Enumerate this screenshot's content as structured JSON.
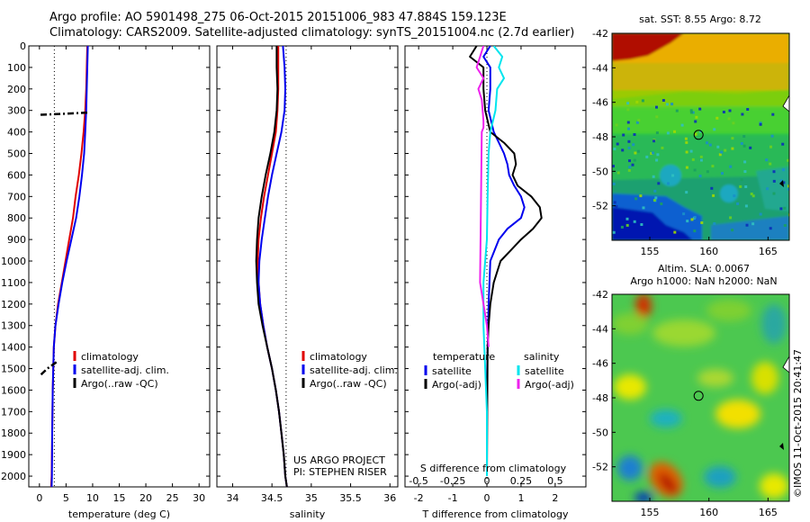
{
  "header": {
    "line1": "Argo profile: AO 5901498_275 06-Oct-2015 20151006_983 47.884S 159.123E",
    "line2": "Climatology: CARS2009. Satellite-adjusted climatology: synTS_20151004.nc (2.7d earlier)"
  },
  "colors": {
    "climatology": "#e00000",
    "satellite": "#0000ee",
    "argo": "#000000",
    "cyan": "#00e5ee",
    "magenta": "#ee22ee"
  },
  "depth_axis": {
    "ylim": [
      0,
      2050
    ],
    "ticks": [
      "0",
      "100",
      "200",
      "300",
      "400",
      "500",
      "600",
      "700",
      "800",
      "900",
      "1000",
      "1100",
      "1200",
      "1300",
      "1400",
      "1500",
      "1600",
      "1700",
      "1800",
      "1900",
      "2000"
    ]
  },
  "chart_data": [
    {
      "id": "temperature",
      "type": "line",
      "xlabel": "temperature (deg C)",
      "xlim": [
        -2,
        32
      ],
      "xticks": [
        "0",
        "5",
        "10",
        "15",
        "20",
        "25",
        "30"
      ],
      "xtick_values": [
        0,
        5,
        10,
        15,
        20,
        25,
        30
      ],
      "ref_x": 2.8,
      "legend": [
        "climatology",
        "satellite-adj. clim.",
        "Argo(..raw -QC)"
      ],
      "series": [
        {
          "name": "climatology",
          "color": "#e00000",
          "depth": [
            0,
            100,
            200,
            300,
            400,
            500,
            600,
            700,
            800,
            900,
            1000,
            1100,
            1200,
            1300,
            1400,
            1600,
            1800,
            2000,
            2050
          ],
          "values": [
            9.0,
            8.9,
            8.8,
            8.6,
            8.3,
            7.9,
            7.4,
            6.8,
            6.3,
            5.6,
            4.9,
            4.2,
            3.5,
            3.0,
            2.7,
            2.5,
            2.4,
            2.3,
            2.2
          ]
        },
        {
          "name": "satellite-adj. clim.",
          "color": "#0000ee",
          "depth": [
            0,
            100,
            200,
            300,
            400,
            500,
            600,
            700,
            800,
            900,
            1000,
            1100,
            1200,
            1300,
            1400,
            1600,
            1800,
            2000,
            2050
          ],
          "values": [
            9.1,
            9.0,
            8.9,
            8.8,
            8.6,
            8.4,
            8.0,
            7.5,
            6.9,
            6.0,
            5.1,
            4.3,
            3.6,
            3.0,
            2.7,
            2.5,
            2.4,
            2.35,
            2.3
          ]
        },
        {
          "name": "Argo(..raw -QC)",
          "color": "#000000",
          "dashed": true,
          "depth": [
            310,
            315,
            320
          ],
          "values": [
            9.0,
            5.0,
            0.2
          ]
        },
        {
          "name": "Argo(..raw -QC)",
          "color": "#000000",
          "dashed": true,
          "depth": [
            1470,
            1500,
            1530
          ],
          "values": [
            3.2,
            1.5,
            0.2
          ]
        }
      ]
    },
    {
      "id": "salinity",
      "type": "line",
      "xlabel": "salinity",
      "xlim": [
        33.8,
        36.1
      ],
      "xticks": [
        "34",
        "34.5",
        "35",
        "35.5",
        "36"
      ],
      "xtick_values": [
        34,
        34.5,
        35,
        35.5,
        36
      ],
      "ref_x": 34.68,
      "legend": [
        "climatology",
        "satellite-adj. clim.",
        "Argo(..raw -QC)"
      ],
      "annotations": [
        "US ARGO PROJECT",
        "PI: STEPHEN RISER"
      ],
      "series": [
        {
          "name": "climatology",
          "color": "#e00000",
          "depth": [
            0,
            100,
            200,
            300,
            400,
            500,
            600,
            700,
            800,
            900,
            1000,
            1100,
            1200,
            1300,
            1400,
            1500,
            1600,
            1700,
            1800,
            1900,
            2000,
            2050
          ],
          "values": [
            34.58,
            34.58,
            34.58,
            34.57,
            34.55,
            34.5,
            34.45,
            34.4,
            34.36,
            34.33,
            34.32,
            34.33,
            34.35,
            34.39,
            34.44,
            34.5,
            34.55,
            34.59,
            34.62,
            34.65,
            34.67,
            34.69
          ]
        },
        {
          "name": "satellite-adj. clim.",
          "color": "#0000ee",
          "depth": [
            0,
            100,
            200,
            300,
            400,
            500,
            600,
            700,
            800,
            900,
            1000,
            1100,
            1200,
            1300,
            1400,
            1500,
            1600,
            1700,
            1800,
            1900,
            2000,
            2050
          ],
          "values": [
            34.64,
            34.66,
            34.67,
            34.66,
            34.62,
            34.56,
            34.5,
            34.45,
            34.41,
            34.37,
            34.34,
            34.33,
            34.35,
            34.39,
            34.44,
            34.5,
            34.55,
            34.59,
            34.62,
            34.65,
            34.67,
            34.69
          ]
        },
        {
          "name": "Argo(..raw -QC)",
          "color": "#000000",
          "depth": [
            0,
            100,
            200,
            300,
            400,
            500,
            600,
            700,
            800,
            900,
            1000,
            1100,
            1200,
            1300,
            1400,
            1500,
            1600,
            1700,
            1800,
            1900,
            2000,
            2050
          ],
          "values": [
            34.56,
            34.56,
            34.57,
            34.56,
            34.53,
            34.48,
            34.42,
            34.37,
            34.33,
            34.31,
            34.3,
            34.31,
            34.33,
            34.38,
            34.44,
            34.5,
            34.55,
            34.59,
            34.62,
            34.65,
            34.67,
            34.69
          ]
        }
      ]
    },
    {
      "id": "difference",
      "type": "line",
      "xlabel": "T difference from climatology",
      "xlabel_top": "S difference from climatology",
      "xlim": [
        -2.4,
        2.9
      ],
      "xticks": [
        "-2",
        "-1",
        "0",
        "1",
        "2"
      ],
      "xtick_values": [
        -2,
        -1,
        0,
        1,
        2
      ],
      "top_ticks": [
        "-0.5",
        "-0.25",
        "0",
        "0.25",
        "0.5"
      ],
      "top_tick_values": [
        -2,
        -1,
        0,
        1,
        2
      ],
      "ref_x": 0,
      "legend_titles": [
        "temperature",
        "salinity"
      ],
      "legend": [
        "satellite",
        "Argo(-adj)",
        "satellite",
        "Argo(-adj)"
      ],
      "series": [
        {
          "name": "temperature satellite",
          "color": "#0000ee",
          "depth": [
            0,
            50,
            100,
            200,
            300,
            400,
            500,
            550,
            600,
            650,
            700,
            750,
            800,
            850,
            900,
            1000,
            1200,
            1400,
            1600,
            2000
          ],
          "values": [
            0.1,
            -0.1,
            0.1,
            0.1,
            0.05,
            0.2,
            0.5,
            0.6,
            0.65,
            0.8,
            1.0,
            1.1,
            1.0,
            0.6,
            0.35,
            0.1,
            0.05,
            0.02,
            0.0,
            0.0
          ]
        },
        {
          "name": "temperature Argo(-adj)",
          "color": "#000000",
          "depth": [
            0,
            50,
            100,
            200,
            300,
            400,
            450,
            500,
            550,
            600,
            650,
            700,
            750,
            800,
            850,
            900,
            950,
            1000,
            1100,
            1200,
            1300,
            1400,
            2000
          ],
          "values": [
            -0.3,
            -0.5,
            -0.1,
            -0.1,
            -0.05,
            0.1,
            0.5,
            0.8,
            0.85,
            0.75,
            0.9,
            1.3,
            1.55,
            1.6,
            1.35,
            1.0,
            0.7,
            0.4,
            0.2,
            0.1,
            0.05,
            0.02,
            0.0
          ]
        },
        {
          "name": "salinity satellite",
          "color": "#00e5ee",
          "depth": [
            0,
            50,
            100,
            150,
            200,
            300,
            400,
            500,
            700,
            900,
            1100,
            1300,
            1500,
            1700,
            2000
          ],
          "values": [
            0.2,
            0.45,
            0.35,
            0.5,
            0.3,
            0.25,
            0.1,
            0.05,
            0.02,
            0.0,
            -0.1,
            -0.1,
            -0.05,
            0.0,
            0.0
          ]
        },
        {
          "name": "salinity Argo(-adj)",
          "color": "#ee22ee",
          "depth": [
            0,
            50,
            100,
            150,
            200,
            250,
            350,
            380,
            400,
            1100,
            1200,
            1300,
            1400
          ],
          "values": [
            -0.1,
            -0.2,
            -0.3,
            -0.1,
            -0.25,
            -0.15,
            -0.1,
            -0.1,
            -0.15,
            -0.2,
            -0.1,
            0.0,
            0.05
          ]
        }
      ]
    }
  ],
  "maps": {
    "sst": {
      "title": "sat. SST: 8.55 Argo: 8.72",
      "yticks": [
        "-42",
        "-44",
        "-46",
        "-48",
        "-50",
        "-52"
      ],
      "ytick_values": [
        -42,
        -44,
        -46,
        -48,
        -50,
        -52
      ],
      "xticks": [
        "155",
        "160",
        "165"
      ],
      "xtick_values": [
        155,
        160,
        165
      ],
      "lon": [
        151.8,
        166.8
      ],
      "lat": [
        -54.0,
        -42.0
      ],
      "marker": {
        "lon": 159.123,
        "lat": -47.884
      }
    },
    "sla": {
      "title_line1": "Altim. SLA: 0.0067",
      "title_line2": "Argo h1000: NaN h2000: NaN",
      "yticks": [
        "-42",
        "-44",
        "-46",
        "-48",
        "-50",
        "-52"
      ],
      "ytick_values": [
        -42,
        -44,
        -46,
        -48,
        -50,
        -52
      ],
      "xticks": [
        "155",
        "160",
        "165"
      ],
      "xtick_values": [
        155,
        160,
        165
      ],
      "lon": [
        151.8,
        166.8
      ],
      "lat": [
        -54.0,
        -42.0
      ],
      "marker": {
        "lon": 159.123,
        "lat": -47.884
      }
    }
  },
  "credit": "©IMOS 11-Oct-2015 20:41:47"
}
